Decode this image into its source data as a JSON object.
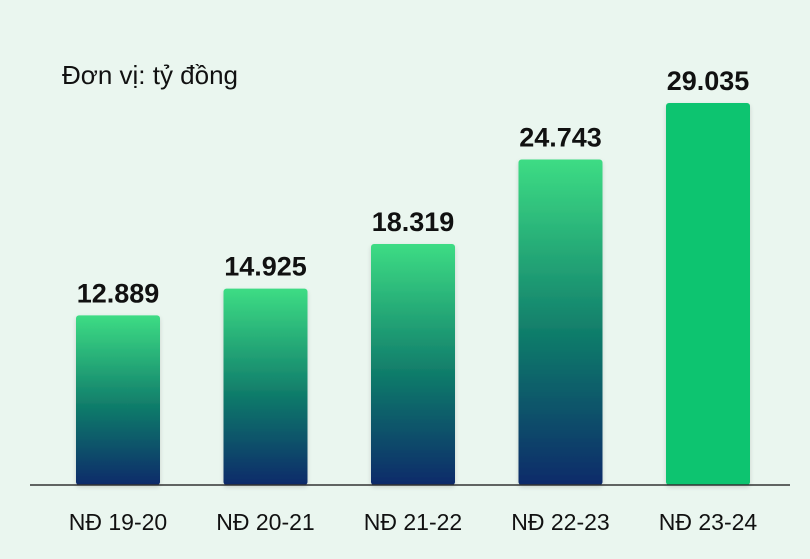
{
  "chart_data": {
    "type": "bar",
    "unit_note": "Đơn vị: tỷ đồng",
    "categories": [
      "NĐ 19-20",
      "NĐ 20-21",
      "NĐ 21-22",
      "NĐ 22-23",
      "NĐ 23-24"
    ],
    "values": [
      12889,
      14925,
      18319,
      24743,
      29035
    ],
    "value_labels": [
      "12.889",
      "14.925",
      "18.319",
      "24.743",
      "29.035"
    ],
    "ylim": [
      0,
      29035
    ],
    "grid": false,
    "legend": "none"
  },
  "colors": {
    "background": "#eaf6ef",
    "gradient_top": "#3ddc84",
    "gradient_mid": "#0f7a6a",
    "gradient_bottom": "#0b2a6a",
    "highlight_bar": "#0ec46f",
    "axis": "#333333",
    "text": "#111111"
  }
}
